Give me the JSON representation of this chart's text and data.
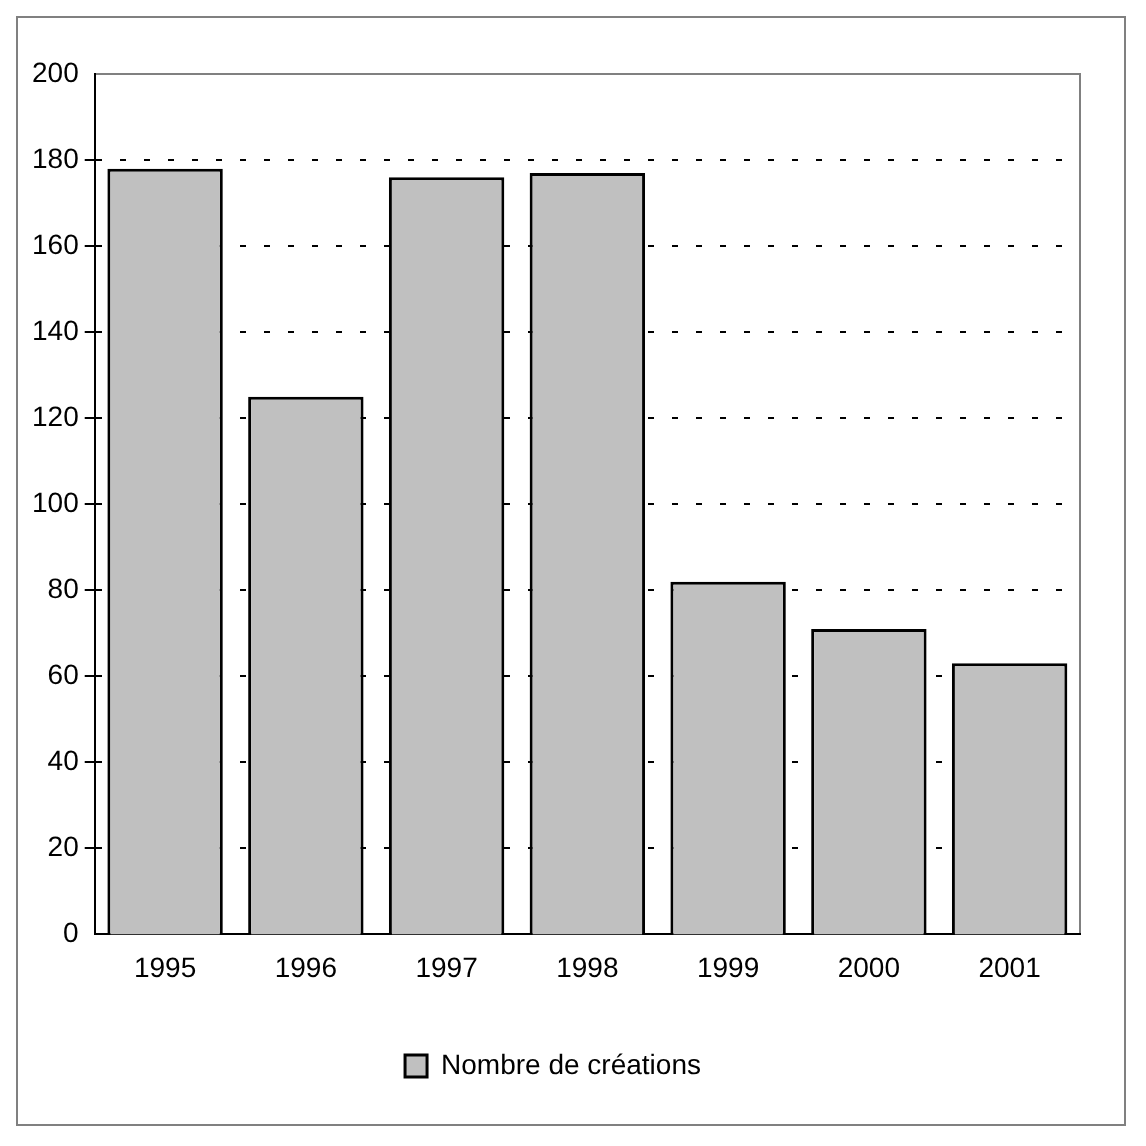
{
  "chart_data": {
    "type": "bar",
    "categories": [
      "1995",
      "1996",
      "1997",
      "1998",
      "1999",
      "2000",
      "2001"
    ],
    "series": [
      {
        "name": "Nombre de créations",
        "color": "#c0c0c0",
        "values": [
          178,
          125,
          176,
          177,
          82,
          71,
          63
        ]
      }
    ],
    "ylim": [
      0,
      200
    ],
    "yticks": [
      0,
      20,
      40,
      60,
      80,
      100,
      120,
      140,
      160,
      180,
      200
    ],
    "grid": "y",
    "line_style": "dashed",
    "legend": "bottom"
  }
}
